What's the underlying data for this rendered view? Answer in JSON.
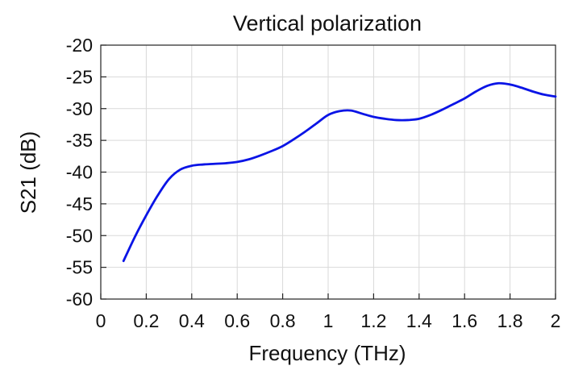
{
  "chart_data": {
    "type": "line",
    "title": "Vertical polarization",
    "xlabel": "Frequency (THz)",
    "ylabel": "S21 (dB)",
    "xlim": [
      0,
      2
    ],
    "ylim": [
      -60,
      -20
    ],
    "grid": true,
    "x_ticks": [
      0,
      0.2,
      0.4,
      0.6,
      0.8,
      1,
      1.2,
      1.4,
      1.6,
      1.8,
      2
    ],
    "x_tick_labels": [
      "0",
      "0.2",
      "0.4",
      "0.6",
      "0.8",
      "1",
      "1.2",
      "1.4",
      "1.6",
      "1.8",
      "2"
    ],
    "y_ticks": [
      -20,
      -25,
      -30,
      -35,
      -40,
      -45,
      -50,
      -55,
      -60
    ],
    "y_tick_labels": [
      "-20",
      "-25",
      "-30",
      "-35",
      "-40",
      "-45",
      "-50",
      "-55",
      "-60"
    ],
    "series": [
      {
        "color": "#0a14e6",
        "x": [
          0.1,
          0.15,
          0.2,
          0.25,
          0.3,
          0.35,
          0.4,
          0.45,
          0.5,
          0.55,
          0.6,
          0.65,
          0.7,
          0.75,
          0.8,
          0.85,
          0.9,
          0.95,
          1.0,
          1.05,
          1.1,
          1.15,
          1.2,
          1.25,
          1.3,
          1.35,
          1.4,
          1.45,
          1.5,
          1.55,
          1.6,
          1.65,
          1.7,
          1.75,
          1.8,
          1.85,
          1.9,
          1.95,
          2.0
        ],
        "y": [
          -54.0,
          -50.2,
          -46.8,
          -43.7,
          -41.1,
          -39.6,
          -39.0,
          -38.8,
          -38.7,
          -38.6,
          -38.4,
          -38.0,
          -37.4,
          -36.7,
          -35.9,
          -34.8,
          -33.6,
          -32.3,
          -31.0,
          -30.4,
          -30.3,
          -30.8,
          -31.3,
          -31.6,
          -31.8,
          -31.8,
          -31.6,
          -31.0,
          -30.2,
          -29.3,
          -28.4,
          -27.3,
          -26.4,
          -26.0,
          -26.2,
          -26.7,
          -27.3,
          -27.8,
          -28.1
        ]
      }
    ]
  }
}
